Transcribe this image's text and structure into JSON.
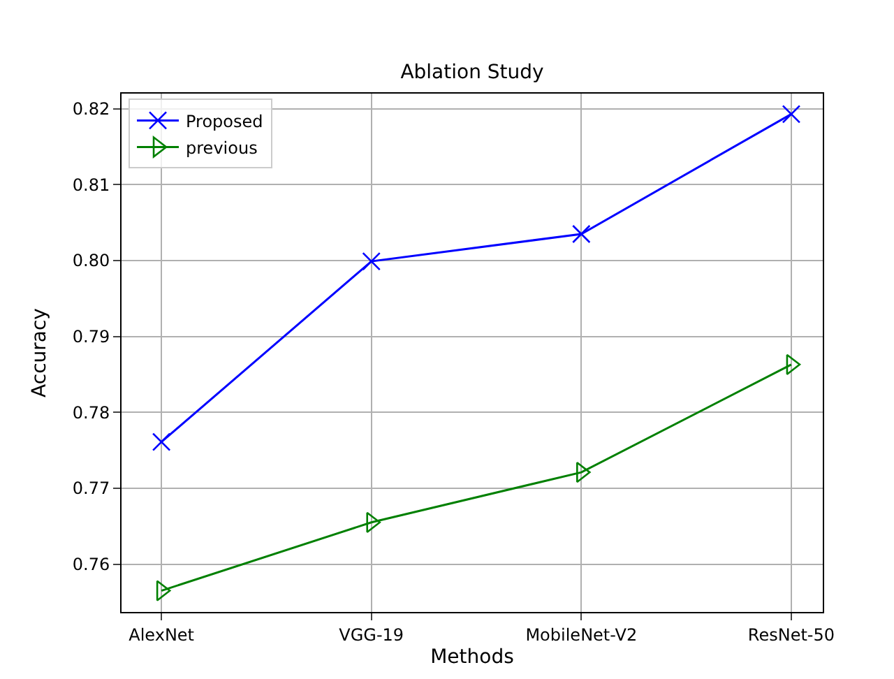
{
  "chart_data": {
    "type": "line",
    "title": "Ablation Study",
    "xlabel": "Methods",
    "ylabel": "Accuracy",
    "categories": [
      "AlexNet",
      "VGG-19",
      "MobileNet-V2",
      "ResNet-50"
    ],
    "series": [
      {
        "name": "Proposed",
        "color": "#0000ff",
        "marker": "cross",
        "values": [
          0.7761,
          0.7999,
          0.8035,
          0.8193
        ]
      },
      {
        "name": "previous",
        "color": "#008000",
        "marker": "triangle",
        "values": [
          0.7565,
          0.7655,
          0.7721,
          0.7863
        ]
      }
    ],
    "ylim": [
      0.7537,
      0.822
    ],
    "yticks": [
      0.76,
      0.77,
      0.78,
      0.79,
      {
        "value": 0.8,
        "label": "0.80"
      },
      0.81,
      0.82
    ],
    "grid": true,
    "legend": "top left",
    "line_style": "solid"
  }
}
